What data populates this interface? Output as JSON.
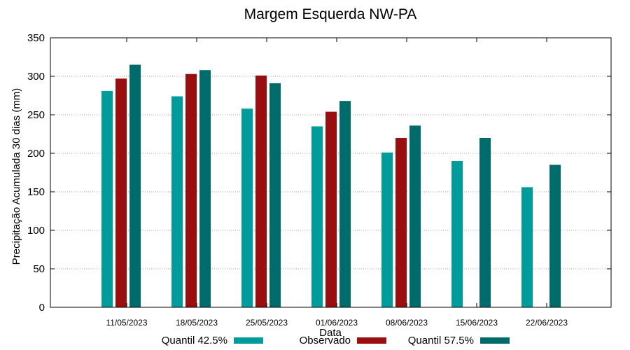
{
  "chart_data": {
    "type": "bar",
    "title": "Margem Esquerda NW-PA",
    "xlabel": "Data",
    "ylabel": "Precipitação Acumulada 30 dias (mm)",
    "ylim": [
      0,
      350
    ],
    "yticks": [
      0,
      50,
      100,
      150,
      200,
      250,
      300,
      350
    ],
    "grid": true,
    "legend_position": "bottom",
    "categories": [
      "11/05/2023",
      "18/05/2023",
      "25/05/2023",
      "01/06/2023",
      "08/06/2023",
      "15/06/2023",
      "22/06/2023"
    ],
    "series": [
      {
        "name": "Quantil 42.5%",
        "color": "#009b9b",
        "values": [
          281,
          274,
          258,
          235,
          201,
          190,
          156
        ]
      },
      {
        "name": "Observado",
        "color": "#990f0f",
        "values": [
          297,
          303,
          301,
          254,
          220,
          null,
          null
        ]
      },
      {
        "name": "Quantil 57.5%",
        "color": "#006b6b",
        "values": [
          315,
          308,
          291,
          268,
          236,
          220,
          185
        ]
      }
    ]
  }
}
